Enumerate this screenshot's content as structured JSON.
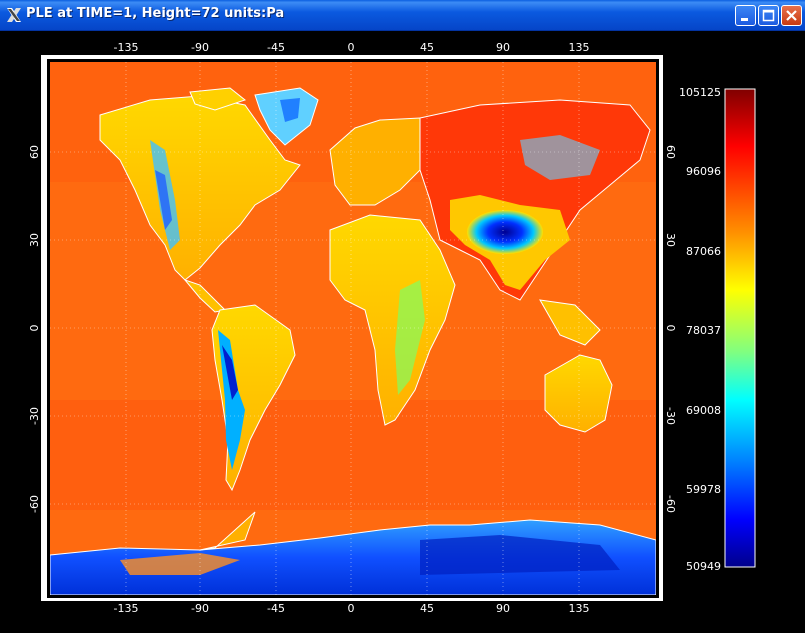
{
  "window": {
    "title": "PLE at TIME=1, Height=72  units:Pa",
    "buttons": {
      "minimize": "minimize",
      "maximize": "maximize",
      "close": "close"
    }
  },
  "map": {
    "top_lon_ticks": [
      "-135",
      "-90",
      "-45",
      "0",
      "45",
      "90",
      "135"
    ],
    "bottom_lon_ticks": [
      "-135",
      "-90",
      "-45",
      "0",
      "45",
      "90",
      "135"
    ],
    "left_lat_ticks": [
      "60",
      "30",
      "0",
      "-30",
      "-60"
    ],
    "right_lat_ticks": [
      "60",
      "30",
      "0",
      "-30",
      "-60"
    ]
  },
  "colorbar": {
    "labels": [
      "105125",
      "96096",
      "87066",
      "78037",
      "69008",
      "59978",
      "50949"
    ],
    "colors": [
      "#8b0000",
      "#ff0000",
      "#ffa000",
      "#ffff00",
      "#00ffff",
      "#0080ff",
      "#0000ff",
      "#00008b"
    ]
  }
}
